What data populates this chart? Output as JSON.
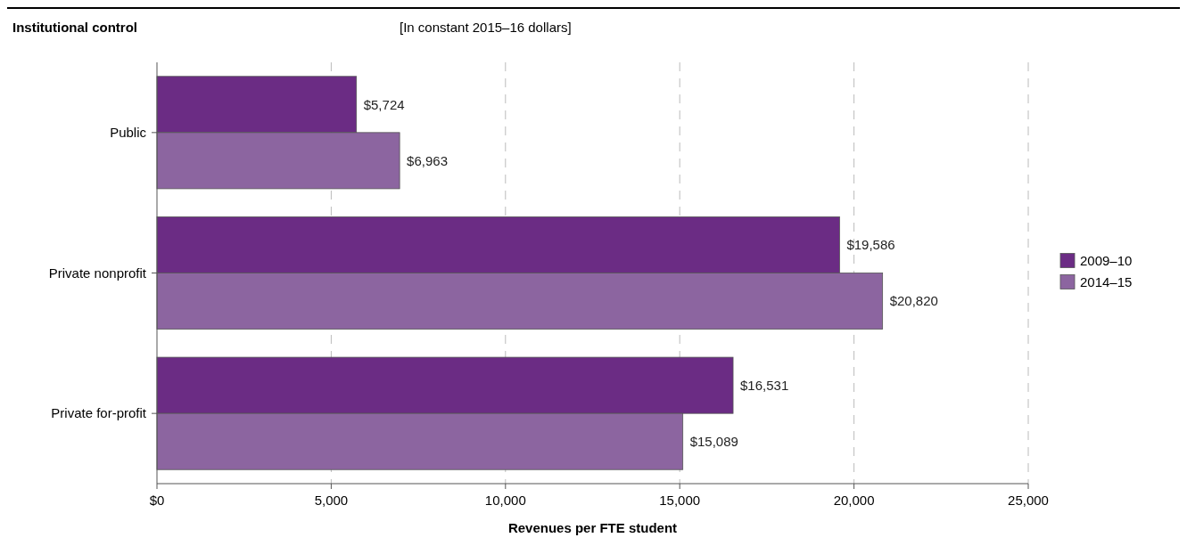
{
  "chart_data": {
    "type": "bar",
    "orientation": "horizontal",
    "ylabel": "Institutional control",
    "subtitle": "[In constant 2015–16 dollars]",
    "xlabel": "Revenues per FTE student",
    "categories": [
      "Public",
      "Private nonprofit",
      "Private for-profit"
    ],
    "series": [
      {
        "name": "2009–10",
        "color": "#6b2c84",
        "values": [
          5724,
          19586,
          16531
        ],
        "value_labels": [
          "$5,724",
          "$19,586",
          "$16,531"
        ]
      },
      {
        "name": "2014–15",
        "color": "#8c65a0",
        "values": [
          6963,
          20820,
          15089
        ],
        "value_labels": [
          "$6,963",
          "$20,820",
          "$15,089"
        ]
      }
    ],
    "xlim": [
      0,
      25000
    ],
    "xticks": [
      {
        "value": 0,
        "label": "$0"
      },
      {
        "value": 5000,
        "label": "5,000"
      },
      {
        "value": 10000,
        "label": "10,000"
      },
      {
        "value": 15000,
        "label": "15,000"
      },
      {
        "value": 20000,
        "label": "20,000"
      },
      {
        "value": 25000,
        "label": "25,000"
      }
    ],
    "grid": "x",
    "legend": "right"
  }
}
